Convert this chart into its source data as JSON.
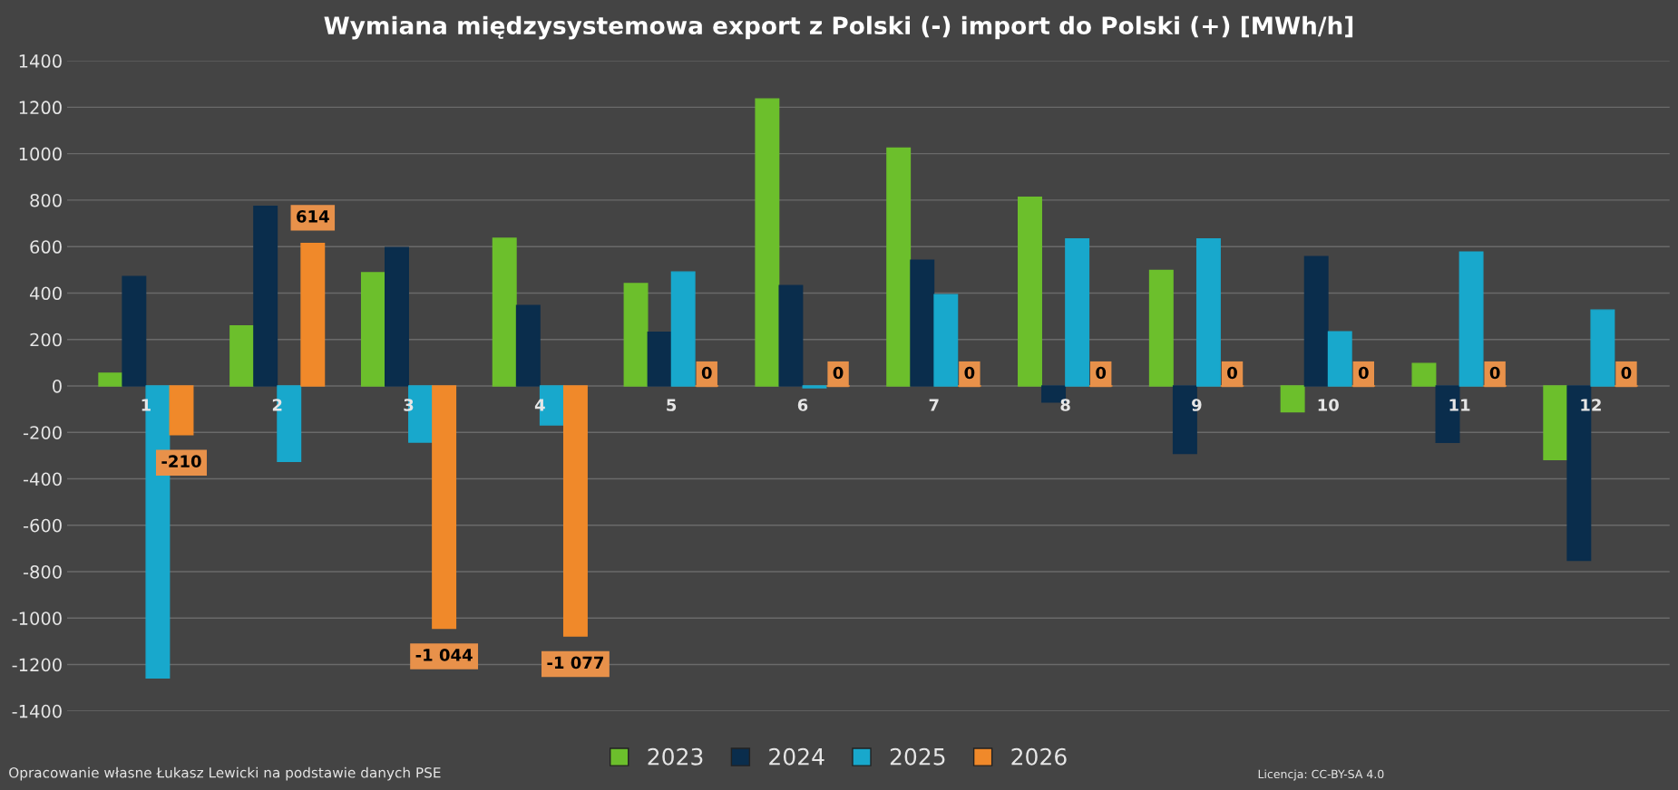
{
  "chart_data": {
    "type": "bar",
    "title": "Wymiana międzysystemowa export z Polski (-) import do Polski (+) [MWh/h]",
    "categories": [
      "1",
      "2",
      "3",
      "4",
      "5",
      "6",
      "7",
      "8",
      "9",
      "10",
      "11",
      "12"
    ],
    "series": [
      {
        "name": "2023",
        "color": "#6cbf2c",
        "values": [
          55,
          259,
          488,
          636,
          441,
          1236,
          1024,
          813,
          498,
          -112,
          97,
          -317
        ]
      },
      {
        "name": "2024",
        "color": "#0a2d4c",
        "values": [
          471,
          774,
          596,
          346,
          231,
          432,
          541,
          -70,
          -291,
          557,
          -243,
          -751
        ]
      },
      {
        "name": "2025",
        "color": "#18a8cc",
        "values": [
          -1258,
          -325,
          -242,
          -168,
          491,
          -8,
          393,
          633,
          633,
          233,
          577,
          327
        ]
      },
      {
        "name": "2026",
        "color": "#f0892a",
        "values": [
          -210,
          614,
          -1044,
          -1077,
          0,
          0,
          0,
          0,
          0,
          0,
          0,
          0
        ],
        "value_labels": [
          "-210",
          "614",
          "-1 044",
          "-1 077",
          "0",
          "0",
          "0",
          "0",
          "0",
          "0",
          "0",
          "0"
        ]
      }
    ],
    "ylim": [
      -1400,
      1400
    ],
    "yticks": [
      -1400,
      -1200,
      -1000,
      -800,
      -600,
      -400,
      -200,
      0,
      200,
      400,
      600,
      800,
      1000,
      1200,
      1400
    ],
    "grid": "y",
    "legend": "bottom",
    "annotations": [
      "Opracowanie własne Łukasz Lewicki na podstawie danych PSE",
      "Licencja: CC-BY-SA 4.0"
    ]
  }
}
